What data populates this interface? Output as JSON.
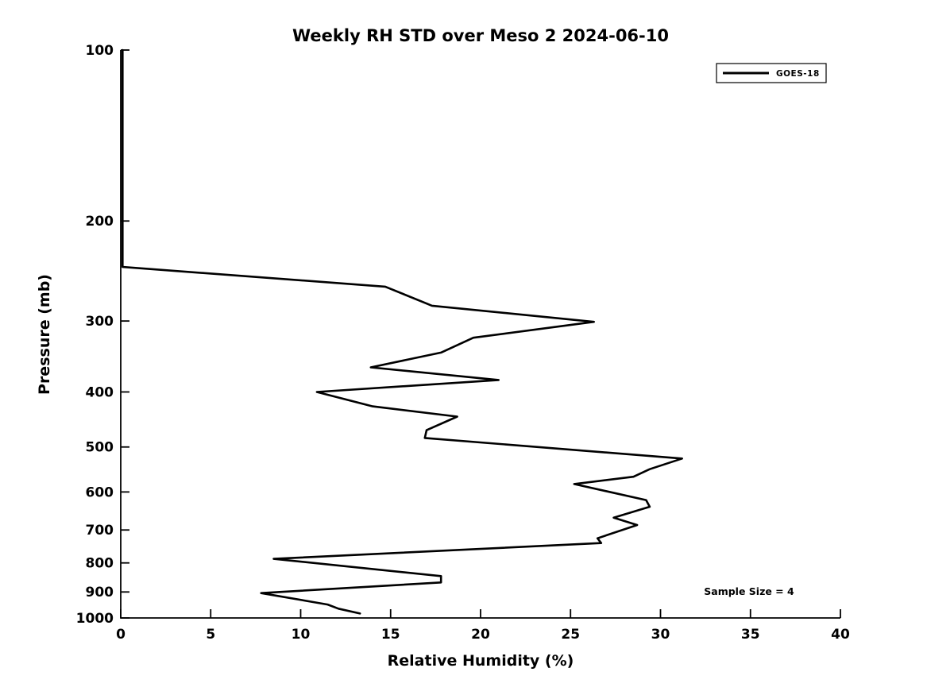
{
  "title": "Weekly RH STD over Meso 2 2024-06-10",
  "xlabel": "Relative Humidity (%)",
  "ylabel": "Pressure (mb)",
  "legend": {
    "label": "GOES-18",
    "position": "upper right"
  },
  "annotation": {
    "text": "Sample Size = 4",
    "approx_rh": 35,
    "approx_pressure": 900
  },
  "colors": {
    "line": "#000000",
    "axis": "#000000",
    "text": "#000000",
    "background": "#ffffff"
  },
  "chart_data": {
    "type": "line",
    "title": "Weekly RH STD over Meso 2 2024-06-10",
    "xlabel": "Relative Humidity (%)",
    "ylabel": "Pressure (mb)",
    "xlim": [
      0,
      40
    ],
    "ylim": [
      1000,
      100
    ],
    "yscale": "log",
    "xticks": [
      0,
      5,
      10,
      15,
      20,
      25,
      30,
      35,
      40
    ],
    "yticks": [
      100,
      200,
      300,
      400,
      500,
      600,
      700,
      800,
      900,
      1000
    ],
    "grid": false,
    "legend_position": "upper right",
    "series": [
      {
        "name": "GOES-18",
        "color": "#000000",
        "linewidth": 2.6,
        "points_rh_pressure": [
          [
            0.1,
            100
          ],
          [
            0.1,
            241
          ],
          [
            14.7,
            261
          ],
          [
            17.3,
            282
          ],
          [
            26.3,
            301
          ],
          [
            19.6,
            321
          ],
          [
            17.8,
            341
          ],
          [
            13.9,
            362
          ],
          [
            21.0,
            381
          ],
          [
            10.9,
            400
          ],
          [
            14.0,
            424
          ],
          [
            18.7,
            442
          ],
          [
            17.0,
            467
          ],
          [
            16.9,
            482
          ],
          [
            31.2,
            524
          ],
          [
            29.4,
            547
          ],
          [
            28.5,
            564
          ],
          [
            25.2,
            581
          ],
          [
            29.2,
            620
          ],
          [
            29.4,
            637
          ],
          [
            27.4,
            666
          ],
          [
            28.7,
            686
          ],
          [
            26.5,
            724
          ],
          [
            26.7,
            738
          ],
          [
            8.5,
            787
          ],
          [
            17.8,
            844
          ],
          [
            17.8,
            866
          ],
          [
            7.8,
            904
          ],
          [
            11.5,
            947
          ],
          [
            12.1,
            963
          ],
          [
            13.3,
            982
          ]
        ]
      }
    ],
    "annotations": [
      {
        "text": "Sample Size = 4",
        "rh": 35,
        "pressure": 900
      }
    ]
  }
}
